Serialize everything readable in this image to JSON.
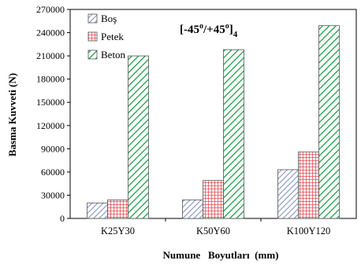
{
  "chart_data": {
    "type": "bar",
    "title": "",
    "annotation": {
      "prefix": "[-45",
      "sup1": "o",
      "mid": "/+45",
      "sup2": "o",
      "close": "]",
      "sub": "4"
    },
    "xlabel": "Numune   Boyutları  (mm)",
    "ylabel": "Basma Kuvveti (N)",
    "categories": [
      "K25Y30",
      "K50Y60",
      "K100Y120"
    ],
    "ylim": [
      0,
      270000
    ],
    "yticks": [
      0,
      30000,
      60000,
      90000,
      120000,
      150000,
      180000,
      210000,
      240000,
      270000
    ],
    "ytick_labels": [
      "0",
      "30000",
      "60000",
      "90000",
      "120000",
      "150000",
      "180000",
      "210000",
      "240000",
      "270000"
    ],
    "grid": false,
    "legend_position": "top-left",
    "series": [
      {
        "name": "Boş",
        "values": [
          20000,
          24000,
          63000
        ],
        "pattern": "diagonal-blue",
        "color": "#5b6fa8"
      },
      {
        "name": "Petek",
        "values": [
          24000,
          49000,
          86000
        ],
        "pattern": "grid-red",
        "color": "#e0202a"
      },
      {
        "name": "Beton",
        "values": [
          210000,
          218000,
          249000
        ],
        "pattern": "diagonal-green",
        "color": "#1aa04a"
      }
    ]
  }
}
